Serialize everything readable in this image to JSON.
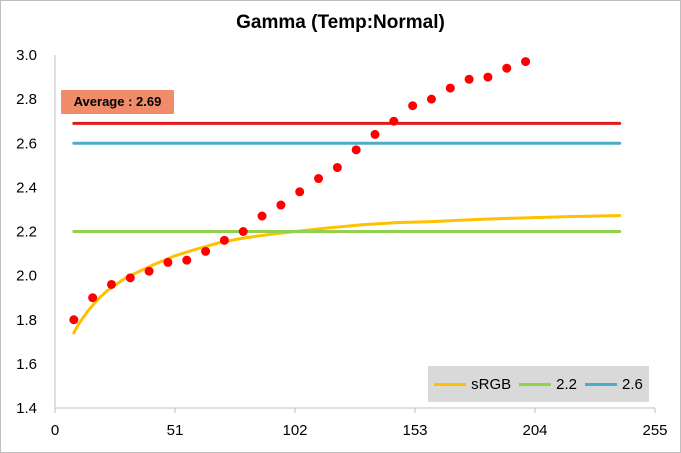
{
  "chart_data": {
    "type": "line",
    "title": "Gamma (Temp:Normal)",
    "xlim": [
      0,
      255
    ],
    "ylim": [
      1.4,
      3.0
    ],
    "xticks": [
      0,
      51,
      102,
      153,
      204,
      255
    ],
    "yticks": [
      1.4,
      1.6,
      1.8,
      2.0,
      2.2,
      2.4,
      2.6,
      2.8,
      3.0
    ],
    "yticks_labels": [
      "1.4",
      "1.6",
      "1.8",
      "2.0",
      "2.2",
      "2.4",
      "2.6",
      "2.8",
      "3.0"
    ],
    "grid": false,
    "legend_position": "bottom-right",
    "annotation": "Average : 2.69",
    "series": [
      {
        "name": "sRGB",
        "kind": "line",
        "color": "#ffc000",
        "x": [
          8,
          10,
          14,
          18,
          22,
          26,
          30,
          36,
          42,
          51,
          60,
          70,
          80,
          90,
          102,
          115,
          130,
          145,
          160,
          180,
          200,
          220,
          240
        ],
        "y": [
          1.74,
          1.78,
          1.84,
          1.89,
          1.93,
          1.96,
          1.99,
          2.02,
          2.05,
          2.09,
          2.12,
          2.15,
          2.17,
          2.185,
          2.2,
          2.215,
          2.23,
          2.24,
          2.245,
          2.255,
          2.262,
          2.268,
          2.272
        ]
      },
      {
        "name": "2.2",
        "kind": "line",
        "color": "#92d050",
        "x": [
          8,
          240
        ],
        "y": [
          2.2,
          2.2
        ]
      },
      {
        "name": "2.6",
        "kind": "line",
        "color": "#4bacc6",
        "x": [
          8,
          240
        ],
        "y": [
          2.6,
          2.6
        ]
      },
      {
        "name": "",
        "kind": "line",
        "color": "#e31a1c",
        "x": [
          8,
          240
        ],
        "y": [
          2.69,
          2.69
        ]
      },
      {
        "name": "",
        "kind": "scatter",
        "color": "#ff0000",
        "x": [
          8,
          16,
          24,
          32,
          40,
          48,
          56,
          64,
          72,
          80,
          88,
          96,
          104,
          112,
          120,
          128,
          136,
          144,
          152,
          160,
          168,
          176,
          184,
          192,
          200
        ],
        "y": [
          1.8,
          1.9,
          1.96,
          1.99,
          2.02,
          2.06,
          2.07,
          2.11,
          2.16,
          2.2,
          2.27,
          2.32,
          2.38,
          2.44,
          2.49,
          2.57,
          2.64,
          2.7,
          2.77,
          2.8,
          2.85,
          2.89,
          2.9,
          2.94,
          2.97
        ]
      }
    ]
  }
}
